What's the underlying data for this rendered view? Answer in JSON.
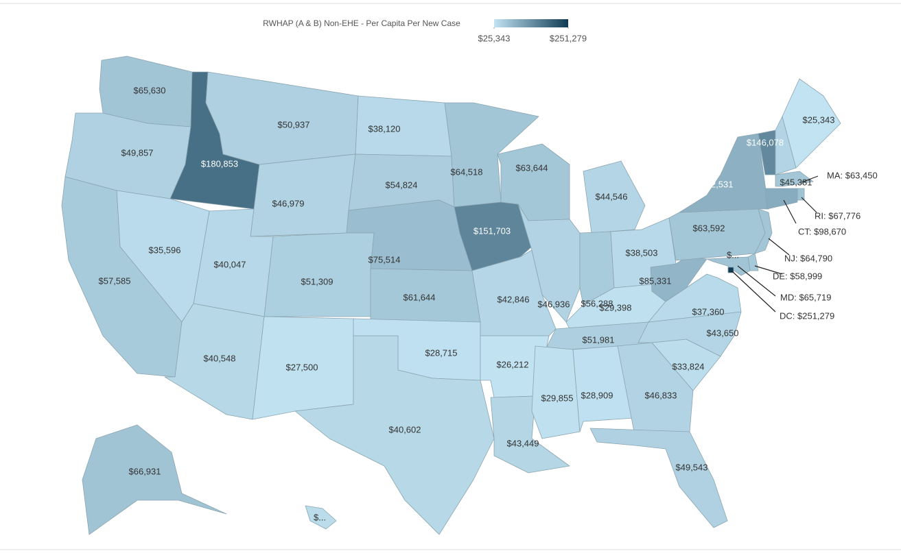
{
  "chart_data": {
    "type": "choropleth",
    "title": "RWHAP (A & B) Non-EHE - Per Capita Per New Case",
    "colorlim": [
      25343,
      251279
    ],
    "colorticks": [
      {
        "value": 25343,
        "label": "$25,343"
      },
      {
        "value": 251279,
        "label": "$251,279"
      }
    ],
    "colors": [
      "#c2e3f2",
      "#0f3b54"
    ],
    "values": [
      65630,
      49857,
      180853,
      50937,
      38120,
      54824,
      46979,
      75514,
      51309,
      61644,
      40047,
      35596,
      57585,
      40548,
      27500,
      28715,
      40602,
      64518,
      151703,
      42846,
      26212,
      43449,
      63644,
      46936,
      44546,
      56288,
      38503,
      29398,
      51981,
      29855,
      28909,
      46833,
      49543,
      33824,
      43650,
      37360,
      85331,
      63592,
      92531,
      146078,
      45381,
      25343,
      63450,
      67776,
      98670,
      64790,
      58999,
      65719,
      251279,
      66931,
      35000
    ],
    "value_labels": [
      "$65,630",
      "$49,857",
      "$180,853",
      "$50,937",
      "$38,120",
      "$54,824",
      "$46,979",
      "$75,514",
      "$51,309",
      "$61,644",
      "$40,047",
      "$35,596",
      "$57,585",
      "$40,548",
      "$27,500",
      "$28,715",
      "$40,602",
      "$64,518",
      "$151,703",
      "$42,846",
      "$26,212",
      "$43,449",
      "$63,644",
      "$46,936",
      "$44,546",
      "$56,288",
      "$38,503",
      "$29,398",
      "$51,981",
      "$29,855",
      "$28,909",
      "$46,833",
      "$49,543",
      "$33,824",
      "$43,650",
      "$37,360",
      "$85,331",
      "$63,592",
      "$92,531",
      "$146,078",
      "$45,381",
      "$25,343",
      "MA: $63,450",
      "RI: $67,776",
      "CT: $98,670",
      "NJ: $64,790",
      "DE: $58,999",
      "MD: $65,719",
      "DC: $251,279",
      "$66,931",
      "$..."
    ],
    "annotations": [
      "$..."
    ]
  }
}
